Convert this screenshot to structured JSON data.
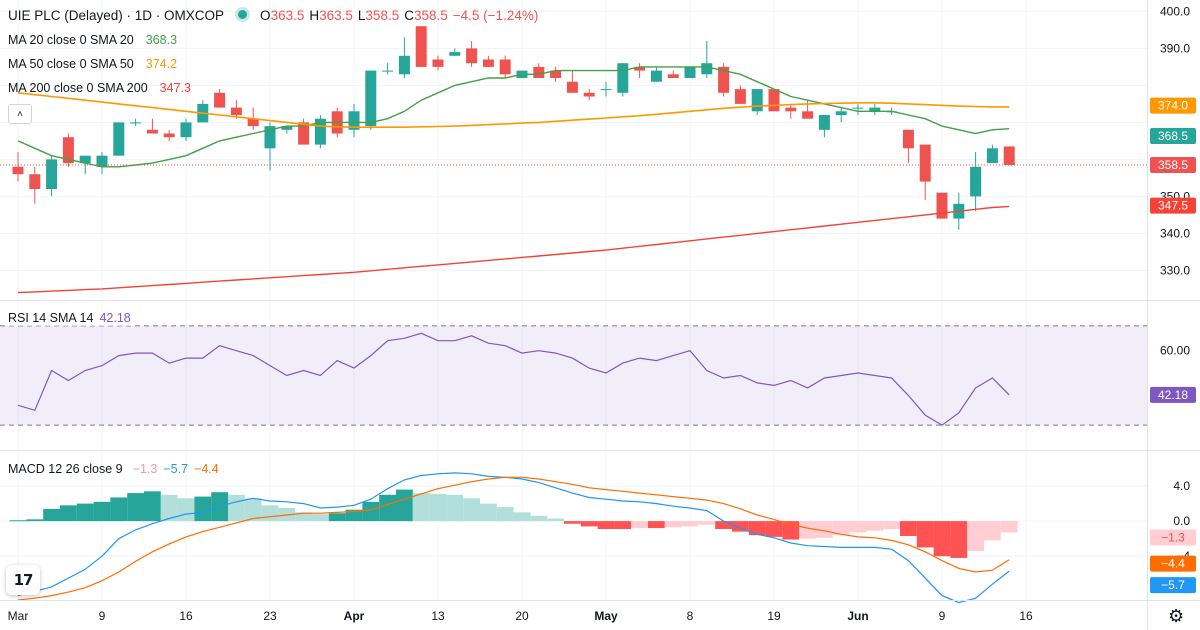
{
  "header": {
    "symbol_title": "UIE PLC (Delayed) · 1D · OMXCOP",
    "ohlc": {
      "o_label": "O",
      "o": "363.5",
      "h_label": "H",
      "h": "363.5",
      "l_label": "L",
      "l": "358.5",
      "c_label": "C",
      "c": "358.5",
      "change": "−4.5 (−1.24%)"
    }
  },
  "indicators": {
    "ma20": {
      "label": "MA 20 close 0 SMA 20",
      "value": "368.3",
      "color": "#43a047"
    },
    "ma50": {
      "label": "MA 50 close 0 SMA 50",
      "value": "374.2",
      "color": "#ff9800"
    },
    "ma200": {
      "label": "MA 200 close 0 SMA 200",
      "value": "347.3",
      "color": "#f44336"
    },
    "rsi": {
      "label": "RSI 14 SMA 14",
      "value": "42.18",
      "color": "#7e57c2"
    },
    "macd": {
      "label": "MACD 12 26 close 9",
      "hist_value": "−1.3",
      "macd_value": "−5.7",
      "signal_value": "−4.4",
      "hist_color": "#ffcdd2",
      "macd_color": "#2196f3",
      "signal_color": "#ff6d00"
    }
  },
  "price_tags": [
    {
      "text": "374.0",
      "value": 374.0,
      "color": "#ff9800"
    },
    {
      "text": "368.5",
      "value": 368.5,
      "color": "#26a69a"
    },
    {
      "text": "358.5",
      "value": 358.5,
      "color": "#ef5350"
    },
    {
      "text": "347.5",
      "value": 347.5,
      "color": "#f44336"
    }
  ],
  "rsi_tags": [
    {
      "text": "42.18",
      "value": 42.18,
      "color": "#7e57c2"
    }
  ],
  "macd_tags": [
    {
      "text": "−1.3",
      "value": -1.3,
      "color": "#ffcdd2",
      "text_color": "#ef5350"
    },
    {
      "text": "−4.4",
      "value": -4.4,
      "color": "#ff6d00",
      "text_color": "#ffffff"
    },
    {
      "text": "−5.7",
      "value": -5.7,
      "color": "#2196f3",
      "text_color": "#ffffff"
    }
  ],
  "colors": {
    "up": "#26a69a",
    "down": "#ef5350",
    "grid": "#f0f3fa",
    "axis_text": "#131722"
  },
  "chart_data": [
    {
      "type": "candlestick",
      "title": "UIE PLC (Delayed) · 1D · OMXCOP",
      "ylim": [
        322,
        402
      ],
      "y_ticks": [
        330,
        340,
        350,
        360,
        370,
        380,
        390,
        400
      ],
      "y_tick_labels": [
        "330.0",
        "340.0",
        "350.0",
        "",
        "",
        "",
        "390.0",
        "400.0"
      ],
      "x_ticks": [
        "Mar",
        "9",
        "16",
        "23",
        "Apr",
        "13",
        "20",
        "May",
        "8",
        "19",
        "Jun",
        "9",
        "16"
      ],
      "x_tick_index": [
        0,
        5,
        10,
        15,
        20,
        25,
        30,
        35,
        40,
        45,
        50,
        55,
        60
      ],
      "candles": [
        {
          "o": 358,
          "h": 362,
          "l": 354,
          "c": 356
        },
        {
          "o": 356,
          "h": 358,
          "l": 348,
          "c": 352
        },
        {
          "o": 352,
          "h": 361,
          "l": 350,
          "c": 360
        },
        {
          "o": 366,
          "h": 367,
          "l": 358,
          "c": 359
        },
        {
          "o": 359,
          "h": 361,
          "l": 356,
          "c": 361
        },
        {
          "o": 358,
          "h": 362,
          "l": 356,
          "c": 361
        },
        {
          "o": 361,
          "h": 370,
          "l": 361,
          "c": 370
        },
        {
          "o": 370,
          "h": 371,
          "l": 369,
          "c": 370
        },
        {
          "o": 368,
          "h": 371,
          "l": 367,
          "c": 367
        },
        {
          "o": 367,
          "h": 368,
          "l": 365,
          "c": 366
        },
        {
          "o": 366,
          "h": 371,
          "l": 365,
          "c": 370
        },
        {
          "o": 370,
          "h": 376,
          "l": 370,
          "c": 375
        },
        {
          "o": 378,
          "h": 379,
          "l": 374,
          "c": 374
        },
        {
          "o": 374,
          "h": 376,
          "l": 371,
          "c": 372
        },
        {
          "o": 371,
          "h": 374,
          "l": 368,
          "c": 369
        },
        {
          "o": 363,
          "h": 370,
          "l": 357,
          "c": 369
        },
        {
          "o": 368,
          "h": 369,
          "l": 367,
          "c": 369
        },
        {
          "o": 370,
          "h": 371,
          "l": 364,
          "c": 364
        },
        {
          "o": 364,
          "h": 372,
          "l": 363,
          "c": 371
        },
        {
          "o": 373,
          "h": 374,
          "l": 366,
          "c": 367
        },
        {
          "o": 368,
          "h": 375,
          "l": 366,
          "c": 373
        },
        {
          "o": 369,
          "h": 384,
          "l": 368,
          "c": 384
        },
        {
          "o": 384,
          "h": 386,
          "l": 383,
          "c": 384
        },
        {
          "o": 383,
          "h": 393,
          "l": 382,
          "c": 388
        },
        {
          "o": 396,
          "h": 396,
          "l": 385,
          "c": 385
        },
        {
          "o": 387,
          "h": 388,
          "l": 384,
          "c": 385
        },
        {
          "o": 388,
          "h": 390,
          "l": 388,
          "c": 389
        },
        {
          "o": 390,
          "h": 392,
          "l": 385,
          "c": 386
        },
        {
          "o": 387,
          "h": 388,
          "l": 385,
          "c": 385
        },
        {
          "o": 387,
          "h": 388,
          "l": 382,
          "c": 383
        },
        {
          "o": 382,
          "h": 384,
          "l": 382,
          "c": 384
        },
        {
          "o": 385,
          "h": 386,
          "l": 382,
          "c": 382
        },
        {
          "o": 384,
          "h": 385,
          "l": 381,
          "c": 382
        },
        {
          "o": 381,
          "h": 384,
          "l": 378,
          "c": 378
        },
        {
          "o": 378,
          "h": 379,
          "l": 376,
          "c": 377
        },
        {
          "o": 379,
          "h": 381,
          "l": 377,
          "c": 379
        },
        {
          "o": 378,
          "h": 386,
          "l": 377,
          "c": 386
        },
        {
          "o": 385,
          "h": 386,
          "l": 382,
          "c": 384
        },
        {
          "o": 381,
          "h": 385,
          "l": 381,
          "c": 384
        },
        {
          "o": 383,
          "h": 384,
          "l": 382,
          "c": 382
        },
        {
          "o": 382,
          "h": 385,
          "l": 382,
          "c": 385
        },
        {
          "o": 383,
          "h": 392,
          "l": 382,
          "c": 386
        },
        {
          "o": 385,
          "h": 386,
          "l": 377,
          "c": 378
        },
        {
          "o": 379,
          "h": 380,
          "l": 375,
          "c": 375
        },
        {
          "o": 373,
          "h": 379,
          "l": 372,
          "c": 379
        },
        {
          "o": 379,
          "h": 379,
          "l": 373,
          "c": 373
        },
        {
          "o": 374,
          "h": 375,
          "l": 371,
          "c": 373
        },
        {
          "o": 373,
          "h": 376,
          "l": 371,
          "c": 371
        },
        {
          "o": 368,
          "h": 372,
          "l": 366,
          "c": 372
        },
        {
          "o": 372,
          "h": 374,
          "l": 370,
          "c": 373
        },
        {
          "o": 374,
          "h": 375,
          "l": 372,
          "c": 374
        },
        {
          "o": 373,
          "h": 375,
          "l": 372,
          "c": 374
        },
        {
          "o": 373,
          "h": 374,
          "l": 372,
          "c": 373
        },
        {
          "o": 368,
          "h": 368,
          "l": 359,
          "c": 363
        },
        {
          "o": 364,
          "h": 364,
          "l": 349,
          "c": 354
        },
        {
          "o": 351,
          "h": 351,
          "l": 344,
          "c": 344
        },
        {
          "o": 344,
          "h": 351,
          "l": 341,
          "c": 348
        },
        {
          "o": 350,
          "h": 362,
          "l": 346,
          "c": 358
        },
        {
          "o": 359,
          "h": 364,
          "l": 359,
          "c": 363
        },
        {
          "o": 363.5,
          "h": 363.5,
          "l": 358.5,
          "c": 358.5
        }
      ],
      "series": [
        {
          "name": "MA 20",
          "color": "#43a047",
          "values": [
            365,
            363,
            361,
            360,
            359,
            358,
            358,
            358.5,
            359,
            360,
            361,
            363,
            365,
            366,
            367,
            368,
            369,
            369,
            370,
            370,
            370,
            370,
            371,
            373,
            376,
            378,
            380,
            381,
            382,
            382,
            383,
            383,
            384,
            384,
            384,
            384,
            384,
            385,
            385,
            385,
            385,
            385,
            384,
            383,
            381,
            379,
            377,
            376,
            375,
            374,
            373,
            373,
            373,
            372,
            371,
            369,
            368,
            367,
            368,
            368.3
          ]
        },
        {
          "name": "MA 50",
          "color": "#ff9800",
          "values": [
            378,
            377.5,
            377,
            376.5,
            376,
            375.5,
            375,
            374.5,
            374,
            373.5,
            373,
            372.5,
            372,
            371.5,
            371,
            370.5,
            370,
            369.5,
            369,
            368.8,
            368.7,
            368.7,
            368.7,
            368.7,
            368.8,
            368.9,
            369,
            369.2,
            369.4,
            369.6,
            369.8,
            370,
            370.3,
            370.6,
            370.9,
            371.2,
            371.5,
            371.8,
            372.2,
            372.6,
            373,
            373.4,
            373.8,
            374.1,
            374.4,
            374.6,
            374.8,
            375,
            375.1,
            375.2,
            375.3,
            375.3,
            375.2,
            375,
            374.8,
            374.6,
            374.4,
            374.3,
            374.2,
            374.2
          ]
        },
        {
          "name": "MA 200",
          "color": "#f44336",
          "values": [
            324,
            324.2,
            324.4,
            324.6,
            324.8,
            325,
            325.3,
            325.6,
            325.9,
            326.2,
            326.5,
            326.8,
            327.1,
            327.4,
            327.7,
            328,
            328.3,
            328.6,
            328.9,
            329.2,
            329.5,
            329.9,
            330.3,
            330.7,
            331.1,
            331.5,
            331.9,
            332.3,
            332.7,
            333.1,
            333.5,
            333.9,
            334.3,
            334.7,
            335.1,
            335.5,
            336,
            336.5,
            337,
            337.5,
            338,
            338.5,
            339,
            339.5,
            340,
            340.5,
            341,
            341.5,
            342,
            342.5,
            343,
            343.5,
            344,
            344.5,
            345,
            345.5,
            346,
            346.5,
            347,
            347.3
          ]
        }
      ]
    },
    {
      "type": "line",
      "title": "RSI 14 SMA 14",
      "ylim": [
        20,
        80
      ],
      "band": [
        30,
        70
      ],
      "y_ticks": [
        60
      ],
      "y_tick_labels": [
        "60.00"
      ],
      "series": [
        {
          "name": "RSI",
          "color": "#7e57c2",
          "values": [
            38,
            36,
            52,
            48,
            52,
            54,
            58,
            59,
            59,
            55,
            57,
            57,
            62,
            60,
            58,
            54,
            50,
            52,
            50,
            56,
            53,
            58,
            64,
            65,
            67,
            64,
            64,
            66,
            63,
            62,
            59,
            60,
            59,
            57,
            53,
            51,
            55,
            57,
            56,
            58,
            60,
            52,
            49,
            50,
            47,
            46,
            48,
            45,
            49,
            50,
            51,
            50,
            49,
            42,
            34,
            30,
            35,
            45,
            49,
            42.18
          ]
        }
      ]
    },
    {
      "type": "bar+line",
      "title": "MACD 12 26 close 9",
      "ylim": [
        -9,
        8
      ],
      "y_ticks": [
        4,
        0,
        -4
      ],
      "y_tick_labels": [
        "4.0",
        "0.0",
        "−4"
      ],
      "series": [
        {
          "name": "Histogram",
          "type": "bar",
          "color_up": "#26a69a",
          "color_down": "#ef5350",
          "values": [
            0.1,
            0.2,
            1.4,
            1.8,
            2,
            2.2,
            2.7,
            3.2,
            3.4,
            3,
            2.6,
            2.8,
            3.3,
            3,
            2.6,
            1.8,
            1.5,
            1,
            0.8,
            0.9,
            1.3,
            2.2,
            3,
            3.6,
            3.2,
            3.1,
            3,
            2.6,
            2,
            1.6,
            1,
            0.6,
            0.3,
            -0.3,
            -0.6,
            -0.9,
            -0.9,
            -0.8,
            -0.8,
            -0.7,
            -0.6,
            -0.4,
            -0.9,
            -1.2,
            -1.6,
            -1.8,
            -2.1,
            -2,
            -1.9,
            -1.6,
            -1.3,
            -1.1,
            -0.9,
            -1.7,
            -3,
            -4,
            -4.2,
            -3.4,
            -2.2,
            -1.3
          ]
        },
        {
          "name": "MACD",
          "type": "line",
          "color": "#2196f3",
          "values": [
            -8.5,
            -8,
            -7.5,
            -6.5,
            -5.5,
            -4,
            -2,
            -1,
            -0.3,
            0.3,
            0.8,
            1,
            1.7,
            2.2,
            2.6,
            2.3,
            2.2,
            2,
            1.5,
            1.6,
            1.8,
            2.5,
            3.7,
            4.7,
            5.2,
            5.4,
            5.5,
            5.4,
            5.1,
            5,
            4.8,
            4.4,
            3.8,
            3.2,
            2.7,
            2.5,
            2.3,
            2.2,
            2,
            1.7,
            1.5,
            1.2,
            0,
            -0.8,
            -1.5,
            -1.9,
            -2.5,
            -2.8,
            -2.9,
            -3,
            -3,
            -3,
            -3.2,
            -4.5,
            -6.5,
            -8.5,
            -9.3,
            -8.8,
            -7.2,
            -5.7
          ]
        },
        {
          "name": "Signal",
          "type": "line",
          "color": "#ff6d00",
          "values": [
            -9,
            -8.8,
            -8.5,
            -8.1,
            -7.6,
            -6.8,
            -5.8,
            -4.6,
            -3.5,
            -2.6,
            -1.8,
            -1.2,
            -0.7,
            -0.2,
            0.3,
            0.5,
            0.7,
            0.9,
            0.9,
            1,
            1.1,
            1.3,
            1.9,
            2.5,
            3.1,
            3.7,
            4.1,
            4.5,
            4.8,
            5,
            5,
            4.8,
            4.5,
            4.2,
            3.8,
            3.6,
            3.4,
            3.2,
            3,
            2.8,
            2.6,
            2.4,
            2,
            1.4,
            0.7,
            0.2,
            -0.4,
            -0.8,
            -1.1,
            -1.5,
            -1.8,
            -1.9,
            -2.2,
            -2.7,
            -3.5,
            -4.5,
            -5.4,
            -5.8,
            -5.6,
            -4.4
          ]
        }
      ]
    }
  ]
}
